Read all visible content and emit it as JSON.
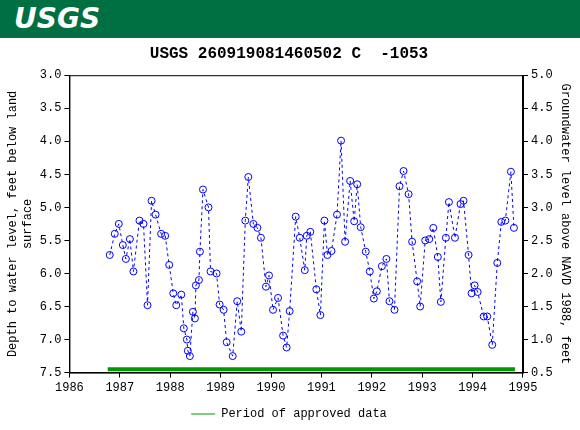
{
  "banner": {
    "text": "USGS"
  },
  "chart_data": {
    "type": "scatter",
    "title": "USGS 260919081460502 C  -1053",
    "ylabel": [
      "Depth to water level, feet below land",
      "surface"
    ],
    "y2label": "Groundwater level above NAVD 1988, feet",
    "xlim": [
      1986,
      1995
    ],
    "xticks": [
      1986,
      1987,
      1988,
      1989,
      1990,
      1991,
      1992,
      1993,
      1994,
      1995
    ],
    "ylim": [
      7.5,
      3.0
    ],
    "yticks": [
      {
        "value": 3.0,
        "label": "3.0"
      },
      3.5,
      {
        "value": 4.0,
        "label": "4.0"
      },
      4.5,
      {
        "value": 5.0,
        "label": "5.0"
      },
      5.5,
      {
        "value": 6.0,
        "label": "6.0"
      },
      6.5,
      {
        "value": 7.0,
        "label": "7.0"
      },
      7.5
    ],
    "y2lim": [
      0.5,
      5.0
    ],
    "y2ticks": [
      0.5,
      {
        "value": 1.0,
        "label": "1.0"
      },
      1.5,
      {
        "value": 2.0,
        "label": "2.0"
      },
      2.5,
      {
        "value": 3.0,
        "label": "3.0"
      },
      3.5,
      {
        "value": 4.0,
        "label": "4.0"
      },
      4.5,
      {
        "value": 5.0,
        "label": "5.0"
      }
    ],
    "grid": false,
    "legend": "bottom",
    "series": [
      {
        "color": "#0000ff",
        "marker": "circle",
        "line_style": "dashed",
        "x": [
          1986.8,
          1986.9,
          1986.98,
          1987.06,
          1987.12,
          1987.2,
          1987.27,
          1987.39,
          1987.47,
          1987.55,
          1987.63,
          1987.71,
          1987.82,
          1987.9,
          1987.98,
          1988.06,
          1988.12,
          1988.22,
          1988.27,
          1988.33,
          1988.35,
          1988.39,
          1988.45,
          1988.49,
          1988.51,
          1988.57,
          1988.59,
          1988.65,
          1988.76,
          1988.8,
          1988.92,
          1988.98,
          1989.06,
          1989.12,
          1989.24,
          1989.33,
          1989.41,
          1989.49,
          1989.55,
          1989.65,
          1989.73,
          1989.8,
          1989.9,
          1989.96,
          1990.04,
          1990.14,
          1990.24,
          1990.31,
          1990.37,
          1990.49,
          1990.57,
          1990.67,
          1990.71,
          1990.78,
          1990.9,
          1990.98,
          1991.06,
          1991.12,
          1991.2,
          1991.31,
          1991.39,
          1991.47,
          1991.57,
          1991.65,
          1991.71,
          1991.78,
          1991.88,
          1991.96,
          1992.04,
          1992.1,
          1992.2,
          1992.29,
          1992.35,
          1992.45,
          1992.55,
          1992.63,
          1992.73,
          1992.8,
          1992.9,
          1992.96,
          1993.06,
          1993.14,
          1993.22,
          1993.31,
          1993.37,
          1993.47,
          1993.53,
          1993.65,
          1993.76,
          1993.82,
          1993.92,
          1993.98,
          1994.04,
          1994.1,
          1994.22,
          1994.29,
          1994.39,
          1994.49,
          1994.57,
          1994.65,
          1994.76,
          1994.82
        ],
        "values": [
          5.72,
          5.4,
          5.25,
          5.57,
          5.78,
          5.48,
          5.97,
          5.2,
          5.25,
          6.48,
          4.9,
          5.11,
          5.4,
          5.43,
          5.87,
          6.3,
          6.48,
          6.32,
          6.83,
          7.0,
          7.17,
          7.25,
          6.58,
          6.68,
          6.18,
          6.1,
          5.67,
          4.73,
          5.0,
          5.97,
          6.0,
          6.47,
          6.55,
          7.04,
          7.25,
          6.42,
          6.88,
          5.2,
          4.54,
          5.25,
          5.31,
          5.46,
          6.2,
          6.03,
          6.55,
          6.37,
          6.94,
          7.12,
          6.57,
          5.14,
          5.46,
          5.95,
          5.43,
          5.37,
          6.24,
          6.63,
          5.2,
          5.72,
          5.66,
          5.11,
          3.99,
          5.52,
          4.6,
          5.21,
          4.65,
          5.3,
          5.67,
          5.97,
          6.38,
          6.27,
          5.89,
          5.78,
          6.42,
          6.55,
          4.68,
          4.45,
          4.8,
          5.52,
          6.12,
          6.5,
          5.5,
          5.48,
          5.31,
          5.75,
          6.43,
          5.46,
          4.92,
          5.46,
          4.95,
          4.9,
          5.72,
          6.3,
          6.18,
          6.28,
          6.65,
          6.65,
          7.08,
          5.84,
          5.22,
          5.2,
          4.46,
          5.31
        ]
      },
      {
        "name": "Period of approved data",
        "color": "#009900",
        "marker": "none",
        "line_style": "solid",
        "x": [
          1986.76,
          1994.84
        ],
        "values": [
          7.45,
          7.45
        ]
      }
    ]
  }
}
